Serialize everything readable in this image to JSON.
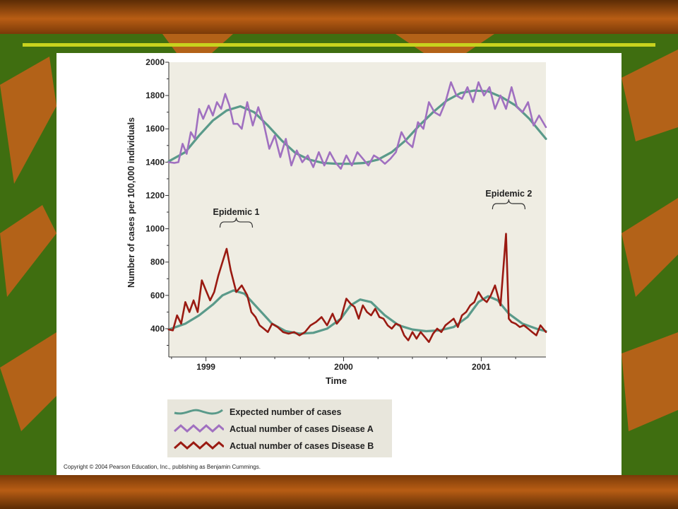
{
  "slide": {
    "copyright": "Copyright © 2004 Pearson Education, Inc., publishing as Benjamin Cummings."
  },
  "colors": {
    "background_green": "#3f6e10",
    "band_brown": "#8a4510",
    "leaf_orange": "#c8601a",
    "rule_yellow": "#c8d21e",
    "plot_background": "#efede3",
    "expected": "#5a9a8a",
    "disease_a": "#a070c0",
    "disease_b": "#9a1a12"
  },
  "chart_data": {
    "type": "line",
    "xlabel": "Time",
    "ylabel": "Number of cases per 100,000 individuals",
    "x_ticks": [
      "1999",
      "2000",
      "2001"
    ],
    "x_tick_values": [
      1999,
      2000,
      2001
    ],
    "xlim": [
      1998.73,
      2001.47
    ],
    "y_ticks": [
      400,
      600,
      800,
      1000,
      1200,
      1400,
      1600,
      1800,
      2000
    ],
    "ylim": [
      230,
      2000
    ],
    "grid": false,
    "legend_position": "bottom",
    "annotations": [
      {
        "text": "Epidemic 1",
        "x": 1999.22,
        "y": 850
      },
      {
        "text": "Epidemic 2",
        "x": 2001.2,
        "y": 960
      }
    ],
    "series": [
      {
        "name": "Expected number of cases",
        "color": "#5a9a8a",
        "x": [
          1998.73,
          1998.85,
          1998.95,
          1999.05,
          1999.15,
          1999.25,
          1999.35,
          1999.45,
          1999.55,
          1999.65,
          1999.75,
          1999.85,
          1999.95,
          2000.05,
          2000.15,
          2000.25,
          2000.35,
          2000.45,
          2000.55,
          2000.65,
          2000.75,
          2000.85,
          2000.95,
          2001.05,
          2001.15,
          2001.25,
          2001.35,
          2001.47
        ],
        "values": [
          1405,
          1460,
          1560,
          1650,
          1710,
          1735,
          1700,
          1620,
          1530,
          1455,
          1415,
          1395,
          1390,
          1390,
          1395,
          1415,
          1460,
          1530,
          1620,
          1700,
          1770,
          1815,
          1830,
          1825,
          1790,
          1740,
          1660,
          1540
        ],
        "group": "A"
      },
      {
        "name": "Expected number of cases",
        "color": "#5a9a8a",
        "x": [
          1998.73,
          1998.85,
          1998.95,
          1999.05,
          1999.12,
          1999.2,
          1999.28,
          1999.38,
          1999.48,
          1999.58,
          1999.68,
          1999.78,
          1999.88,
          1999.98,
          2000.05,
          2000.12,
          2000.2,
          2000.3,
          2000.4,
          2000.5,
          2000.6,
          2000.7,
          2000.8,
          2000.9,
          2000.98,
          2001.05,
          2001.12,
          2001.2,
          2001.3,
          2001.4,
          2001.47
        ],
        "values": [
          395,
          430,
          480,
          545,
          600,
          630,
          610,
          520,
          430,
          385,
          370,
          375,
          400,
          460,
          540,
          575,
          560,
          480,
          420,
          395,
          385,
          390,
          410,
          470,
          560,
          595,
          570,
          490,
          430,
          400,
          385
        ],
        "group": "B"
      },
      {
        "name": "Actual number of cases Disease A",
        "color": "#a070c0",
        "x": [
          1998.73,
          1998.77,
          1998.8,
          1998.83,
          1998.86,
          1998.89,
          1998.92,
          1998.95,
          1998.98,
          1999.02,
          1999.05,
          1999.08,
          1999.11,
          1999.14,
          1999.17,
          1999.2,
          1999.23,
          1999.26,
          1999.3,
          1999.34,
          1999.38,
          1999.42,
          1999.46,
          1999.5,
          1999.54,
          1999.58,
          1999.62,
          1999.66,
          1999.7,
          1999.74,
          1999.78,
          1999.82,
          1999.86,
          1999.9,
          1999.94,
          1999.98,
          2000.02,
          2000.06,
          2000.1,
          2000.14,
          2000.18,
          2000.22,
          2000.26,
          2000.3,
          2000.34,
          2000.38,
          2000.42,
          2000.46,
          2000.5,
          2000.54,
          2000.58,
          2000.62,
          2000.66,
          2000.7,
          2000.74,
          2000.78,
          2000.82,
          2000.86,
          2000.9,
          2000.94,
          2000.98,
          2001.02,
          2001.06,
          2001.1,
          2001.14,
          2001.18,
          2001.22,
          2001.26,
          2001.3,
          2001.34,
          2001.38,
          2001.42,
          2001.47
        ],
        "values": [
          1400,
          1395,
          1400,
          1510,
          1450,
          1580,
          1540,
          1720,
          1660,
          1740,
          1680,
          1760,
          1720,
          1810,
          1740,
          1630,
          1630,
          1600,
          1760,
          1620,
          1730,
          1630,
          1480,
          1560,
          1430,
          1540,
          1380,
          1470,
          1400,
          1440,
          1370,
          1460,
          1380,
          1460,
          1400,
          1360,
          1440,
          1380,
          1460,
          1420,
          1380,
          1440,
          1420,
          1390,
          1420,
          1460,
          1580,
          1520,
          1490,
          1640,
          1600,
          1760,
          1700,
          1680,
          1760,
          1880,
          1800,
          1780,
          1850,
          1760,
          1880,
          1800,
          1850,
          1720,
          1800,
          1720,
          1850,
          1730,
          1700,
          1760,
          1620,
          1680,
          1610
        ],
        "group": "A"
      },
      {
        "name": "Actual number of cases Disease B",
        "color": "#9a1a12",
        "x": [
          1998.73,
          1998.76,
          1998.79,
          1998.82,
          1998.85,
          1998.88,
          1998.91,
          1998.94,
          1998.97,
          1999.0,
          1999.03,
          1999.06,
          1999.09,
          1999.12,
          1999.15,
          1999.18,
          1999.22,
          1999.26,
          1999.3,
          1999.33,
          1999.36,
          1999.39,
          1999.42,
          1999.45,
          1999.48,
          1999.52,
          1999.56,
          1999.6,
          1999.64,
          1999.68,
          1999.72,
          1999.76,
          1999.8,
          1999.84,
          1999.88,
          1999.92,
          1999.95,
          1999.98,
          2000.02,
          2000.05,
          2000.08,
          2000.11,
          2000.14,
          2000.17,
          2000.2,
          2000.23,
          2000.26,
          2000.29,
          2000.32,
          2000.35,
          2000.38,
          2000.41,
          2000.44,
          2000.47,
          2000.5,
          2000.53,
          2000.56,
          2000.59,
          2000.62,
          2000.65,
          2000.68,
          2000.71,
          2000.74,
          2000.77,
          2000.8,
          2000.83,
          2000.86,
          2000.89,
          2000.92,
          2000.95,
          2000.98,
          2001.01,
          2001.04,
          2001.07,
          2001.1,
          2001.14,
          2001.18,
          2001.2,
          2001.22,
          2001.25,
          2001.28,
          2001.31,
          2001.34,
          2001.37,
          2001.4,
          2001.43,
          2001.47
        ],
        "values": [
          395,
          390,
          480,
          430,
          560,
          500,
          570,
          500,
          690,
          630,
          570,
          620,
          720,
          800,
          880,
          750,
          620,
          660,
          600,
          500,
          470,
          420,
          400,
          380,
          430,
          410,
          380,
          370,
          380,
          360,
          380,
          420,
          440,
          470,
          420,
          490,
          430,
          460,
          580,
          550,
          530,
          460,
          540,
          500,
          480,
          520,
          470,
          460,
          420,
          400,
          430,
          420,
          360,
          330,
          380,
          340,
          380,
          350,
          320,
          370,
          400,
          380,
          420,
          440,
          460,
          410,
          480,
          500,
          540,
          560,
          620,
          580,
          560,
          600,
          660,
          540,
          970,
          460,
          440,
          430,
          410,
          420,
          400,
          380,
          360,
          420,
          380
        ],
        "group": "B"
      }
    ]
  }
}
